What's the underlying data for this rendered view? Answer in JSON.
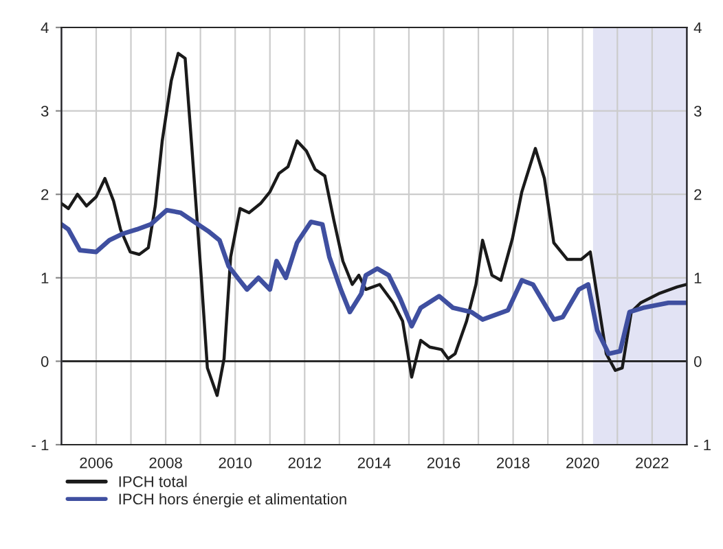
{
  "chart_data": {
    "type": "line",
    "x": [
      2005.0,
      2005.2,
      2005.46,
      2005.72,
      2006.0,
      2006.25,
      2006.5,
      2006.7,
      2006.98,
      2007.24,
      2007.5,
      2007.7,
      2007.9,
      2008.16,
      2008.36,
      2008.56,
      2008.75,
      2009.02,
      2009.2,
      2009.48,
      2009.68,
      2009.87,
      2010.14,
      2010.4,
      2010.73,
      2011.0,
      2011.26,
      2011.52,
      2011.78,
      2012.05,
      2012.3,
      2012.58,
      2012.84,
      2013.1,
      2013.37,
      2013.56,
      2013.76,
      2014.16,
      2014.55,
      2014.82,
      2015.08,
      2015.34,
      2015.6,
      2015.94,
      2016.13,
      2016.33,
      2016.66,
      2016.93,
      2017.12,
      2017.39,
      2017.65,
      2017.98,
      2018.25,
      2018.64,
      2018.9,
      2019.17,
      2019.56,
      2019.96,
      2020.22,
      2020.68,
      2020.94,
      2021.14,
      2021.4,
      2021.67,
      2022.19,
      2022.72,
      2022.98
    ],
    "series": [
      {
        "name": "IPCH total",
        "color": "#1a1a1a",
        "values": [
          1.89,
          1.83,
          2.0,
          1.86,
          1.97,
          2.19,
          1.92,
          1.58,
          1.31,
          1.28,
          1.36,
          1.86,
          2.64,
          3.36,
          3.69,
          3.63,
          2.58,
          1.03,
          -0.08,
          -0.41,
          0.03,
          1.25,
          1.83,
          1.78,
          1.89,
          2.03,
          2.25,
          2.33,
          2.64,
          2.52,
          2.3,
          2.22,
          1.69,
          1.2,
          0.92,
          1.03,
          0.86,
          0.92,
          0.7,
          0.48,
          -0.19,
          0.25,
          0.17,
          0.14,
          0.03,
          0.09,
          0.48,
          0.92,
          1.45,
          1.03,
          0.97,
          1.47,
          2.03,
          2.55,
          2.19,
          1.42,
          1.22,
          1.22,
          1.31,
          0.09,
          -0.11,
          -0.08,
          0.59,
          0.7,
          0.81,
          0.89,
          0.92
        ]
      },
      {
        "name": "IPCH hors énergie et alimentation",
        "color": "#3f4fa0",
        "x": [
          2005.0,
          2005.2,
          2005.53,
          2006.0,
          2006.38,
          2006.78,
          2007.17,
          2007.57,
          2008.03,
          2008.43,
          2008.82,
          2009.22,
          2009.55,
          2009.81,
          2010.07,
          2010.34,
          2010.67,
          2011.0,
          2011.19,
          2011.46,
          2011.78,
          2012.18,
          2012.51,
          2012.71,
          2013.04,
          2013.3,
          2013.63,
          2013.76,
          2014.09,
          2014.42,
          2014.75,
          2015.08,
          2015.34,
          2015.87,
          2016.27,
          2016.8,
          2017.12,
          2017.85,
          2018.25,
          2018.57,
          2019.17,
          2019.43,
          2019.89,
          2020.16,
          2020.42,
          2020.75,
          2021.08,
          2021.35,
          2021.74,
          2022.47,
          2022.98
        ],
        "values": [
          1.64,
          1.58,
          1.33,
          1.31,
          1.45,
          1.53,
          1.58,
          1.64,
          1.81,
          1.78,
          1.67,
          1.56,
          1.45,
          1.14,
          1.0,
          0.86,
          1.0,
          0.86,
          1.2,
          1.0,
          1.42,
          1.67,
          1.64,
          1.25,
          0.86,
          0.59,
          0.81,
          1.03,
          1.11,
          1.03,
          0.75,
          0.42,
          0.64,
          0.78,
          0.64,
          0.59,
          0.5,
          0.61,
          0.97,
          0.92,
          0.5,
          0.53,
          0.86,
          0.92,
          0.37,
          0.09,
          0.12,
          0.59,
          0.64,
          0.7,
          0.7
        ]
      }
    ],
    "xlim": [
      2005,
      2023
    ],
    "xticks": [
      {
        "value": 2006,
        "label": "2006"
      },
      {
        "value": 2007,
        "label": null
      },
      {
        "value": 2008,
        "label": "2008"
      },
      {
        "value": 2009,
        "label": null
      },
      {
        "value": 2010,
        "label": "2010"
      },
      {
        "value": 2011,
        "label": null
      },
      {
        "value": 2012,
        "label": "2012"
      },
      {
        "value": 2013,
        "label": null
      },
      {
        "value": 2014,
        "label": "2014"
      },
      {
        "value": 2015,
        "label": null
      },
      {
        "value": 2016,
        "label": "2016"
      },
      {
        "value": 2017,
        "label": null
      },
      {
        "value": 2018,
        "label": "2018"
      },
      {
        "value": 2019,
        "label": null
      },
      {
        "value": 2020,
        "label": "2020"
      },
      {
        "value": 2021,
        "label": null
      },
      {
        "value": 2022,
        "label": "2022"
      }
    ],
    "ylim": [
      -1,
      4
    ],
    "yticks": [
      {
        "value": -1,
        "label": "- 1"
      },
      0,
      1,
      2,
      3,
      4
    ],
    "y2lim": [
      -1,
      4
    ],
    "y2ticks": [
      {
        "value": -1,
        "label": "- 1"
      },
      0,
      1,
      2,
      3,
      4
    ],
    "ref_lines": [
      {
        "axis": "y",
        "value": 0,
        "color": "#1a1a1a"
      }
    ],
    "bands": [
      {
        "axis": "x",
        "from": 2020.3,
        "to": 2023,
        "color": "#e2e3f4"
      }
    ],
    "grid": true,
    "legend": "bottom left",
    "marker": "none",
    "line_style": "solid"
  }
}
